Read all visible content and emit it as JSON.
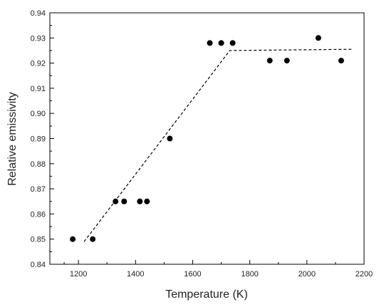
{
  "chart_data": {
    "type": "scatter",
    "title": "",
    "xlabel": "Temperature (K)",
    "ylabel": "Relative emissivity",
    "xlim": [
      1100,
      2200
    ],
    "ylim": [
      0.84,
      0.94
    ],
    "x_ticks": [
      1200,
      1400,
      1600,
      1800,
      2000,
      2200
    ],
    "x_tick_labels": [
      "1200",
      "1400",
      "1600",
      "1800",
      "2000",
      "2200"
    ],
    "y_ticks": [
      0.84,
      0.85,
      0.86,
      0.87,
      0.88,
      0.89,
      0.9,
      0.91,
      0.92,
      0.93,
      0.94
    ],
    "y_tick_labels": [
      "0.84",
      "0.85",
      "0.86",
      "0.87",
      "0.88",
      "0.89",
      "0.90",
      "0.91",
      "0.92",
      "0.93",
      "0.94"
    ],
    "grid": false,
    "legend": false,
    "series": [
      {
        "type": "scatter",
        "color": "#000000",
        "points": [
          {
            "x": 1180,
            "y": 0.85
          },
          {
            "x": 1250,
            "y": 0.85
          },
          {
            "x": 1330,
            "y": 0.865
          },
          {
            "x": 1360,
            "y": 0.865
          },
          {
            "x": 1415,
            "y": 0.865
          },
          {
            "x": 1440,
            "y": 0.865
          },
          {
            "x": 1520,
            "y": 0.89
          },
          {
            "x": 1660,
            "y": 0.928
          },
          {
            "x": 1700,
            "y": 0.928
          },
          {
            "x": 1740,
            "y": 0.928
          },
          {
            "x": 1870,
            "y": 0.921
          },
          {
            "x": 1930,
            "y": 0.921
          },
          {
            "x": 2040,
            "y": 0.93
          },
          {
            "x": 2120,
            "y": 0.921
          }
        ]
      },
      {
        "type": "line",
        "style": "dashed",
        "color": "#000000",
        "points": [
          {
            "x": 1220,
            "y": 0.849
          },
          {
            "x": 1730,
            "y": 0.925
          },
          {
            "x": 2160,
            "y": 0.9255
          }
        ]
      }
    ]
  }
}
